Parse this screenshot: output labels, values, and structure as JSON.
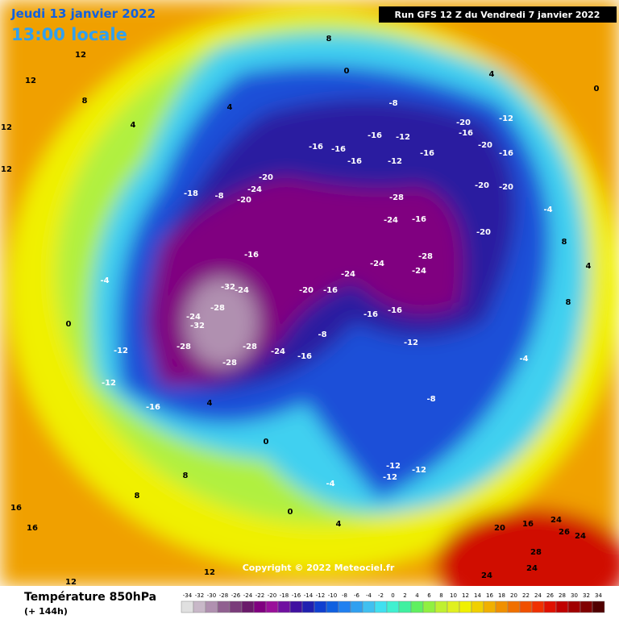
{
  "header": {
    "date": "Jeudi 13 janvier 2022",
    "local_time": "13:00 locale",
    "run": "Run GFS 12 Z du Vendredi 7 janvier 2022"
  },
  "copyright": "Copyright © 2022 Meteociel.fr",
  "legend": {
    "title": "Température 850hPa",
    "lead": "(+ 144h)",
    "scale_values": [
      -34,
      -32,
      -30,
      -28,
      -26,
      -24,
      -22,
      -20,
      -18,
      -16,
      -14,
      -12,
      -10,
      -8,
      -6,
      -4,
      -2,
      0,
      2,
      4,
      6,
      8,
      10,
      12,
      14,
      16,
      18,
      20,
      22,
      24,
      26,
      28,
      30,
      32,
      34
    ],
    "scale_colors": [
      "#e0e0e0",
      "#c8b8c8",
      "#b090b0",
      "#906090",
      "#7a3c7a",
      "#6a1a6a",
      "#800080",
      "#9a109a",
      "#7010a0",
      "#4010a0",
      "#2020b0",
      "#1040d0",
      "#1060e0",
      "#2080f0",
      "#30a0f0",
      "#40c0f0",
      "#40e0f0",
      "#40f0d0",
      "#40f0a0",
      "#60f060",
      "#90f040",
      "#c0f030",
      "#e0f020",
      "#f0f000",
      "#f0d000",
      "#f0b000",
      "#f09000",
      "#f07000",
      "#f05000",
      "#f03000",
      "#e01000",
      "#c00000",
      "#a00000",
      "#800000",
      "#500000"
    ]
  },
  "map_labels": [
    12,
    12,
    12,
    12,
    8,
    4,
    4,
    8,
    4,
    0,
    -8,
    -16,
    -12,
    -16,
    -16,
    -16,
    -12,
    -16,
    -16,
    -20,
    -12,
    -20,
    -16,
    -20,
    -20,
    -20,
    -24,
    -20,
    -18,
    -8,
    -16,
    -28,
    -24,
    -28,
    -24,
    -24,
    -24,
    -16,
    -32,
    -32,
    -24,
    -28,
    -24,
    -28,
    -24,
    -28,
    -28,
    -20,
    -16,
    -16,
    -16,
    -16,
    -12,
    -8,
    -12,
    -12,
    -16,
    -4,
    0,
    0,
    4,
    8,
    8,
    16,
    16,
    12,
    12,
    -12,
    -12,
    -12,
    -4,
    0,
    4,
    -8,
    20,
    16,
    24,
    24,
    24,
    28,
    26,
    24,
    8,
    4,
    -4,
    8,
    0,
    -4,
    -20
  ]
}
